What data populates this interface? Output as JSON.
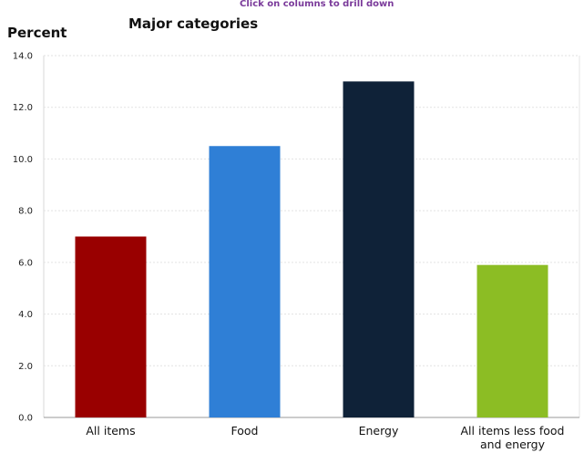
{
  "header": {
    "drill_hint": "Click on columns to drill down"
  },
  "chart_data": {
    "type": "bar",
    "title": "Major categories",
    "xlabel": "",
    "ylabel": "Percent",
    "ylim": [
      0,
      14
    ],
    "yticks": [
      0,
      2,
      4,
      6,
      8,
      10,
      12,
      14
    ],
    "ytick_labels": [
      "0.0",
      "2.0",
      "4.0",
      "6.0",
      "8.0",
      "10.0",
      "12.0",
      "14.0"
    ],
    "grid": true,
    "categories": [
      [
        "All items"
      ],
      [
        "Food"
      ],
      [
        "Energy"
      ],
      [
        "All items less food",
        "and energy"
      ]
    ],
    "values": [
      7.0,
      10.5,
      13.0,
      5.9
    ],
    "colors": [
      "#990000",
      "#2f7fd6",
      "#0f2238",
      "#8cbd24"
    ]
  }
}
